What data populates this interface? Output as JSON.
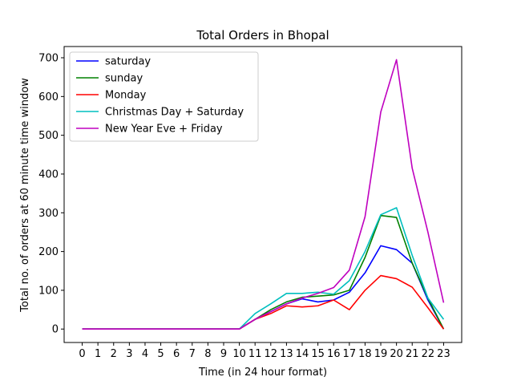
{
  "chart_data": {
    "type": "line",
    "title": "Total Orders in Bhopal",
    "xlabel": "Time (in 24 hour format)",
    "ylabel": "Total no. of orders at 60 minute time window",
    "x": [
      0,
      1,
      2,
      3,
      4,
      5,
      6,
      7,
      8,
      9,
      10,
      11,
      12,
      13,
      14,
      15,
      16,
      17,
      18,
      19,
      20,
      21,
      22,
      23
    ],
    "xticks": [
      "0",
      "1",
      "2",
      "3",
      "4",
      "5",
      "6",
      "7",
      "8",
      "9",
      "10",
      "11",
      "12",
      "13",
      "14",
      "15",
      "16",
      "17",
      "18",
      "19",
      "20",
      "21",
      "22",
      "23"
    ],
    "xlim": [
      -1.15,
      24.15
    ],
    "ylim": [
      -34.7,
      729
    ],
    "yticks": [
      0,
      100,
      200,
      300,
      400,
      500,
      600,
      700
    ],
    "grid": false,
    "legend_position": "top-left",
    "series": [
      {
        "name": "saturday",
        "color": "#0000ff",
        "values": [
          0,
          0,
          0,
          0,
          0,
          0,
          0,
          0,
          0,
          0,
          0,
          25,
          45,
          65,
          78,
          70,
          75,
          95,
          145,
          215,
          205,
          170,
          75,
          0
        ]
      },
      {
        "name": "sunday",
        "color": "#008000",
        "values": [
          0,
          0,
          0,
          0,
          0,
          0,
          0,
          0,
          0,
          0,
          0,
          25,
          50,
          70,
          82,
          85,
          88,
          100,
          185,
          293,
          288,
          170,
          80,
          0
        ]
      },
      {
        "name": "Monday",
        "color": "#ff0000",
        "values": [
          0,
          0,
          0,
          0,
          0,
          0,
          0,
          0,
          0,
          0,
          0,
          25,
          40,
          60,
          57,
          60,
          75,
          50,
          100,
          138,
          130,
          108,
          55,
          0
        ]
      },
      {
        "name": "Christmas Day + Saturday",
        "color": "#00bfbf",
        "values": [
          0,
          0,
          0,
          0,
          0,
          0,
          0,
          0,
          0,
          0,
          0,
          40,
          65,
          92,
          92,
          95,
          90,
          125,
          200,
          295,
          313,
          190,
          80,
          25
        ]
      },
      {
        "name": "New Year Eve + Friday",
        "color": "#bf00bf",
        "values": [
          0,
          0,
          0,
          0,
          0,
          0,
          0,
          0,
          0,
          0,
          0,
          25,
          45,
          65,
          80,
          92,
          107,
          152,
          290,
          560,
          695,
          415,
          250,
          68
        ]
      }
    ]
  }
}
